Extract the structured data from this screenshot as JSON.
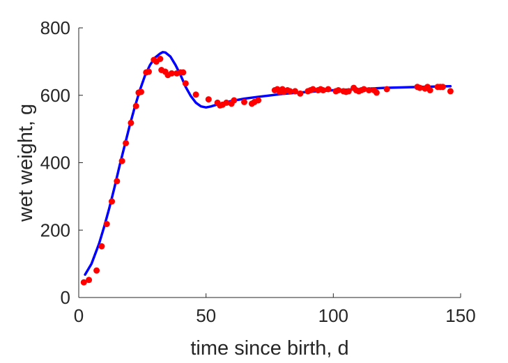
{
  "chart_data": {
    "type": "scatter",
    "xlabel": "time since birth, d",
    "ylabel": "wet weight, g",
    "xlim": [
      0,
      150
    ],
    "ylim": [
      0,
      800
    ],
    "xticks": [
      0,
      50,
      100,
      150
    ],
    "yticks": [
      0,
      200,
      400,
      600,
      800
    ],
    "grid": false,
    "series": [
      {
        "kind": "points",
        "color": "#ff0000",
        "points": [
          [
            2,
            45
          ],
          [
            4,
            52
          ],
          [
            7,
            80
          ],
          [
            9,
            152
          ],
          [
            11,
            218
          ],
          [
            13,
            285
          ],
          [
            15,
            345
          ],
          [
            17,
            405
          ],
          [
            18.5,
            458
          ],
          [
            20.5,
            518
          ],
          [
            22.5,
            568
          ],
          [
            23.5,
            608
          ],
          [
            24.5,
            610
          ],
          [
            26.5,
            668
          ],
          [
            27.5,
            670
          ],
          [
            29.5,
            705
          ],
          [
            30.5,
            700
          ],
          [
            32,
            708
          ],
          [
            32.5,
            675
          ],
          [
            34,
            670
          ],
          [
            35,
            660
          ],
          [
            36.5,
            665
          ],
          [
            38.5,
            665
          ],
          [
            40,
            668
          ],
          [
            41,
            668
          ],
          [
            42,
            635
          ],
          [
            46,
            602
          ],
          [
            51,
            588
          ],
          [
            54.5,
            578
          ],
          [
            55.5,
            570
          ],
          [
            56.5,
            572
          ],
          [
            58,
            578
          ],
          [
            60,
            575
          ],
          [
            61,
            585
          ],
          [
            65,
            580
          ],
          [
            68,
            575
          ],
          [
            69,
            580
          ],
          [
            70.5,
            585
          ],
          [
            77,
            615
          ],
          [
            78,
            618
          ],
          [
            79,
            610
          ],
          [
            80,
            618
          ],
          [
            80.5,
            610
          ],
          [
            82,
            615
          ],
          [
            83,
            612
          ],
          [
            85,
            612
          ],
          [
            87,
            605
          ],
          [
            90,
            612
          ],
          [
            91,
            615
          ],
          [
            92,
            618
          ],
          [
            94,
            615
          ],
          [
            95,
            618
          ],
          [
            96,
            615
          ],
          [
            98,
            618
          ],
          [
            101,
            612
          ],
          [
            102,
            615
          ],
          [
            104,
            612
          ],
          [
            105,
            610
          ],
          [
            106,
            612
          ],
          [
            108,
            622
          ],
          [
            109,
            615
          ],
          [
            110,
            612
          ],
          [
            111,
            615
          ],
          [
            112,
            618
          ],
          [
            114,
            615
          ],
          [
            116,
            615
          ],
          [
            117,
            608
          ],
          [
            121,
            618
          ],
          [
            133,
            625
          ],
          [
            134,
            622
          ],
          [
            136,
            620
          ],
          [
            137,
            625
          ],
          [
            138,
            615
          ],
          [
            141,
            625
          ],
          [
            142,
            625
          ],
          [
            143,
            625
          ],
          [
            146,
            612
          ]
        ]
      },
      {
        "kind": "curve",
        "color": "#0000ff",
        "points": [
          [
            2.5,
            68
          ],
          [
            5,
            100
          ],
          [
            8,
            160
          ],
          [
            10,
            210
          ],
          [
            12,
            265
          ],
          [
            14,
            325
          ],
          [
            16,
            390
          ],
          [
            18,
            450
          ],
          [
            20,
            510
          ],
          [
            22,
            565
          ],
          [
            24,
            615
          ],
          [
            26,
            658
          ],
          [
            28,
            690
          ],
          [
            30,
            712
          ],
          [
            32,
            724
          ],
          [
            33,
            728
          ],
          [
            34,
            727
          ],
          [
            36,
            715
          ],
          [
            38,
            690
          ],
          [
            40,
            660
          ],
          [
            42,
            625
          ],
          [
            44,
            598
          ],
          [
            46,
            578
          ],
          [
            48,
            567
          ],
          [
            50,
            564
          ],
          [
            52,
            567
          ],
          [
            55,
            574
          ],
          [
            60,
            583
          ],
          [
            65,
            590
          ],
          [
            70,
            595
          ],
          [
            80,
            604
          ],
          [
            90,
            610
          ],
          [
            100,
            615
          ],
          [
            110,
            618
          ],
          [
            120,
            622
          ],
          [
            130,
            624
          ],
          [
            140,
            626
          ],
          [
            146,
            627
          ]
        ]
      }
    ]
  }
}
